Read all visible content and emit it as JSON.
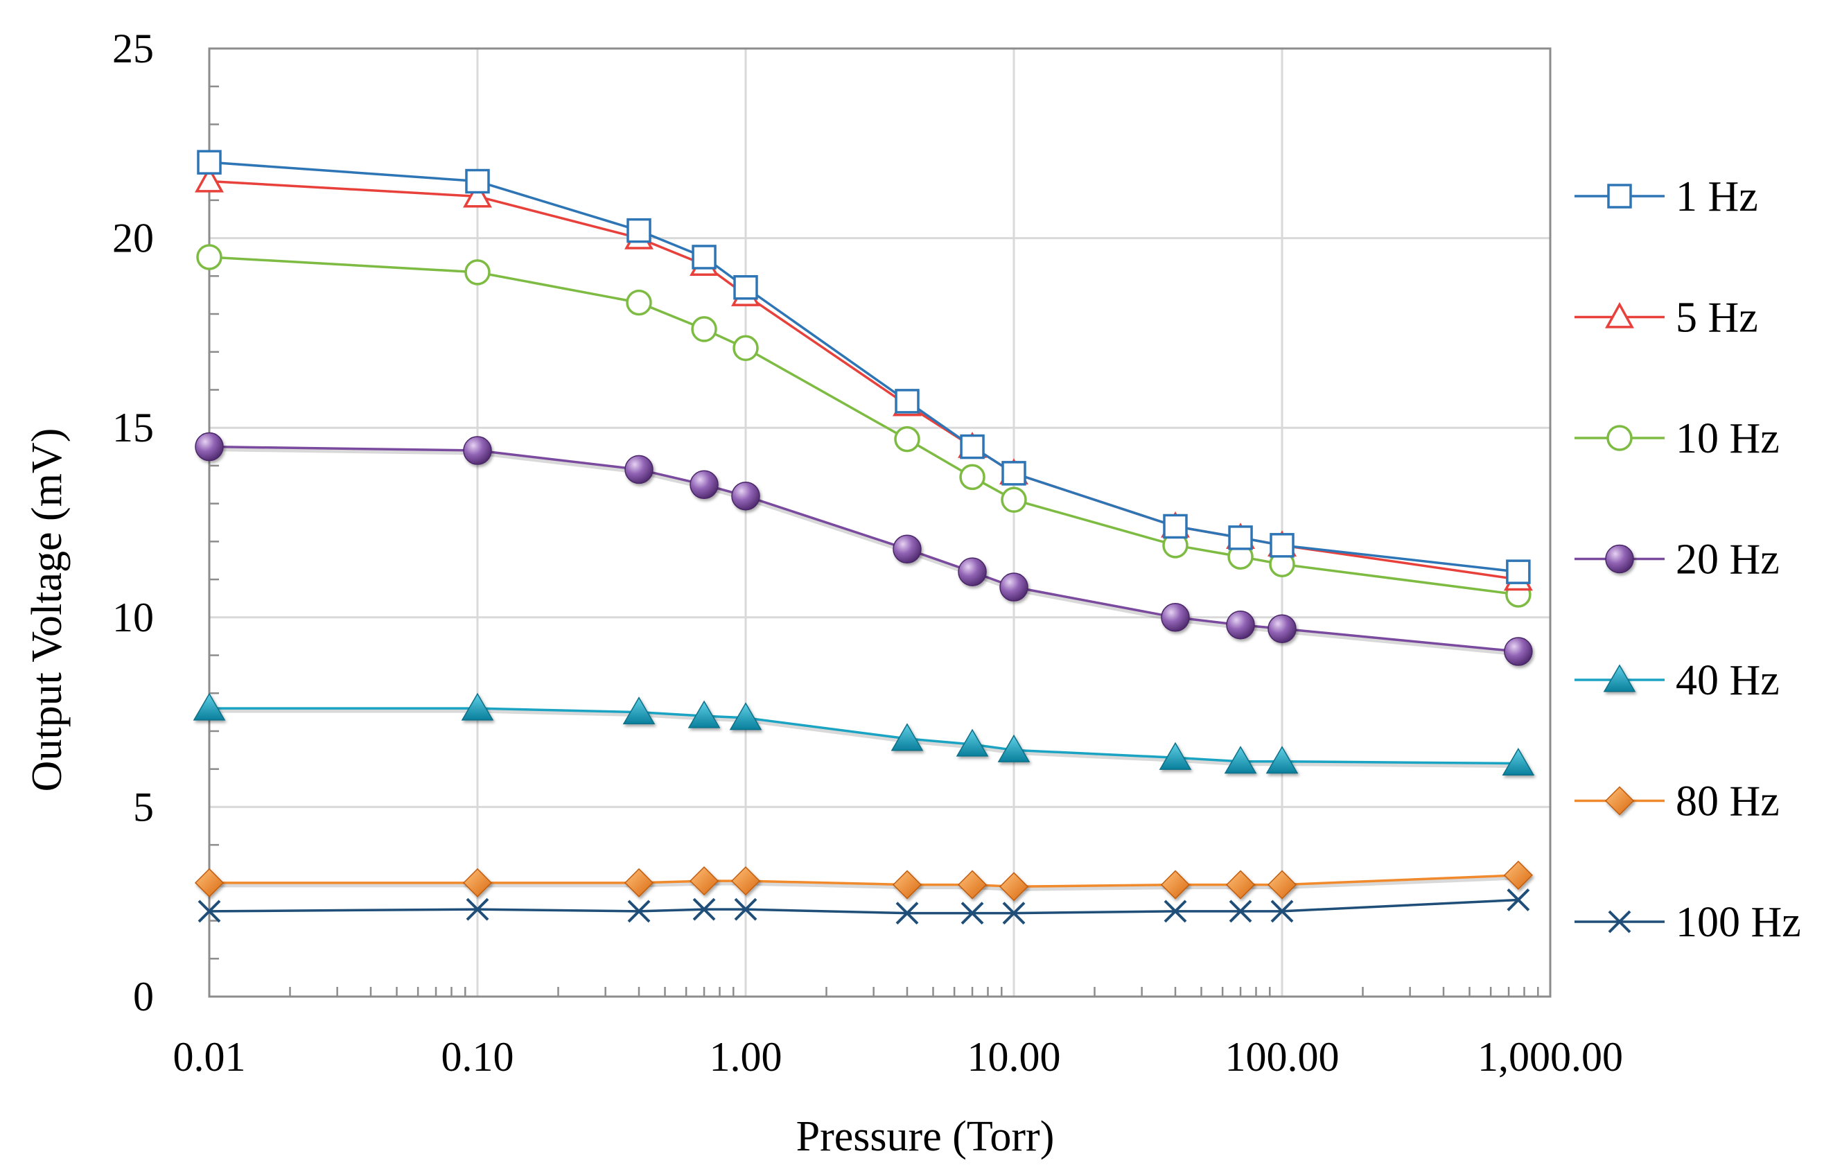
{
  "chart_data": {
    "type": "line",
    "title": "",
    "xlabel": "Pressure (Torr)",
    "ylabel": "Output Voltage (mV)",
    "xscale": "log",
    "xlim": [
      0.01,
      1000
    ],
    "ylim": [
      0,
      25
    ],
    "x_ticks": [
      {
        "value": 0.01,
        "label": "0.01"
      },
      {
        "value": 0.1,
        "label": "0.10"
      },
      {
        "value": 1,
        "label": "1.00"
      },
      {
        "value": 10,
        "label": "10.00"
      },
      {
        "value": 100,
        "label": "100.00"
      },
      {
        "value": 1000,
        "label": "1,000.00"
      }
    ],
    "y_ticks": [
      {
        "value": 0,
        "label": "0"
      },
      {
        "value": 5,
        "label": "5"
      },
      {
        "value": 10,
        "label": "10"
      },
      {
        "value": 15,
        "label": "15"
      },
      {
        "value": 20,
        "label": "20"
      },
      {
        "value": 25,
        "label": "25"
      }
    ],
    "grid": true,
    "legend_position": "right",
    "x": [
      0.01,
      0.1,
      0.4,
      0.7,
      1.0,
      4.0,
      7.0,
      10.0,
      40.0,
      70.0,
      100.0,
      760.0
    ],
    "series": [
      {
        "name": "1 Hz",
        "color": "#2e75b6",
        "marker": "square-open",
        "values": [
          22.0,
          21.5,
          20.2,
          19.5,
          18.7,
          15.7,
          14.5,
          13.8,
          12.4,
          12.1,
          11.9,
          11.2
        ]
      },
      {
        "name": "5 Hz",
        "color": "#e8413c",
        "marker": "triangle-open",
        "values": [
          21.5,
          21.1,
          20.0,
          19.3,
          18.5,
          15.6,
          14.5,
          13.8,
          12.4,
          12.1,
          11.9,
          11.0
        ]
      },
      {
        "name": "10 Hz",
        "color": "#7dbb42",
        "marker": "circle-open",
        "values": [
          19.5,
          19.1,
          18.3,
          17.6,
          17.1,
          14.7,
          13.7,
          13.1,
          11.9,
          11.6,
          11.4,
          10.6
        ]
      },
      {
        "name": "20 Hz",
        "color": "#7a4a9e",
        "marker": "sphere",
        "values": [
          14.5,
          14.4,
          13.9,
          13.5,
          13.2,
          11.8,
          11.2,
          10.8,
          10.0,
          9.8,
          9.7,
          9.1
        ]
      },
      {
        "name": "40 Hz",
        "color": "#1aa3c2",
        "marker": "triangle-filled",
        "values": [
          7.6,
          7.6,
          7.5,
          7.4,
          7.35,
          6.8,
          6.65,
          6.5,
          6.3,
          6.2,
          6.2,
          6.15
        ]
      },
      {
        "name": "80 Hz",
        "color": "#f18a2c",
        "marker": "diamond-filled",
        "values": [
          3.0,
          3.0,
          3.0,
          3.05,
          3.05,
          2.95,
          2.95,
          2.9,
          2.95,
          2.95,
          2.95,
          3.2
        ]
      },
      {
        "name": "100 Hz",
        "color": "#1f4e79",
        "marker": "x",
        "values": [
          2.25,
          2.3,
          2.25,
          2.3,
          2.3,
          2.2,
          2.2,
          2.2,
          2.25,
          2.25,
          2.25,
          2.55
        ]
      }
    ]
  }
}
